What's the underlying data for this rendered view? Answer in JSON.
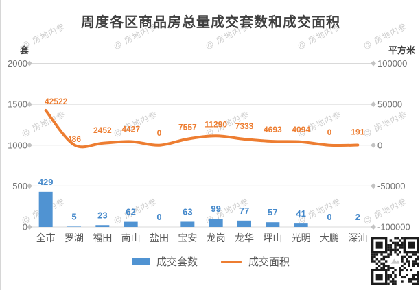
{
  "title": "周度各区商品房总量成交套数和成交面积",
  "watermark": {
    "text": "@ 房地内参"
  },
  "axes": {
    "left_unit": "套",
    "right_unit": "平方米",
    "left_tick_labels": [
      "2000",
      "1500",
      "1000",
      "500",
      "0"
    ],
    "right_tick_labels": [
      "100000",
      "50000",
      "0",
      "-50000",
      "-100000"
    ]
  },
  "colors": {
    "bar": "#5093D2",
    "bar_label": "#4589CB",
    "line": "#ED7D31",
    "line_label": "#ED7D31",
    "grid": "#D9D9D9",
    "grid_marker": "#C3C3C3",
    "axis_text": "#737373",
    "category_text": "#595959",
    "title_text": "#404040",
    "qr_dark": "#1C1C1C"
  },
  "legend": {
    "items": [
      {
        "label": "成交套数",
        "swatch": "bar"
      },
      {
        "label": "成交面积",
        "swatch": "line"
      }
    ]
  },
  "chart_data": {
    "type": "bar",
    "subtype": "combo-bar-line-dual-axis",
    "title": "周度各区商品房总量成交套数和成交面积",
    "categories": [
      "全市",
      "罗湖",
      "福田",
      "南山",
      "盐田",
      "宝安",
      "龙岗",
      "龙华",
      "坪山",
      "光明",
      "大鹏",
      "深汕"
    ],
    "series": [
      {
        "name": "成交套数",
        "type": "bar",
        "axis": "left",
        "values": [
          429,
          5,
          23,
          62,
          0,
          63,
          99,
          77,
          57,
          41,
          0,
          2
        ]
      },
      {
        "name": "成交面积",
        "type": "line",
        "axis": "right",
        "values": [
          42522,
          486,
          2452,
          4427,
          0,
          7557,
          11290,
          7333,
          4693,
          4094,
          0,
          191
        ]
      }
    ],
    "left_axis": {
      "label": "套",
      "range": [
        0,
        2000
      ],
      "ticks": [
        2000,
        1500,
        1000,
        500,
        0
      ]
    },
    "right_axis": {
      "label": "平方米",
      "range": [
        -100000,
        100000
      ],
      "ticks": [
        100000,
        50000,
        0,
        -50000,
        -100000
      ]
    },
    "grid": true,
    "data_labels": true,
    "legend_position": "bottom"
  }
}
